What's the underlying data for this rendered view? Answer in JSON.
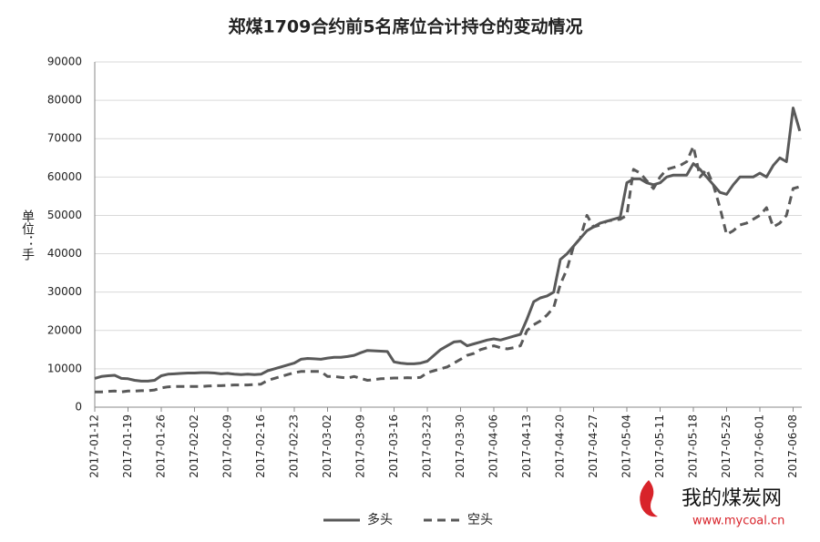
{
  "chart_data": {
    "type": "line",
    "title": "郑煤1709合约前5名席位合计持仓的变动情况",
    "y_label": "单位：手",
    "watermark": {
      "name": "我的煤炭网",
      "url": "www.mycoal.cn"
    },
    "categories": [
      "2017-01-12",
      null,
      null,
      null,
      null,
      "2017-01-19",
      null,
      null,
      null,
      null,
      "2017-01-26",
      null,
      null,
      null,
      null,
      "2017-02-02",
      null,
      null,
      null,
      null,
      "2017-02-09",
      null,
      null,
      null,
      null,
      "2017-02-16",
      null,
      null,
      null,
      null,
      "2017-02-23",
      null,
      null,
      null,
      null,
      "2017-03-02",
      null,
      null,
      null,
      null,
      "2017-03-09",
      null,
      null,
      null,
      null,
      "2017-03-16",
      null,
      null,
      null,
      null,
      "2017-03-23",
      null,
      null,
      null,
      null,
      "2017-03-30",
      null,
      null,
      null,
      null,
      "2017-04-06",
      null,
      null,
      null,
      null,
      "2017-04-13",
      null,
      null,
      null,
      null,
      "2017-04-20",
      null,
      null,
      null,
      null,
      "2017-04-27",
      null,
      null,
      null,
      null,
      "2017-05-04",
      null,
      null,
      null,
      null,
      "2017-05-11",
      null,
      null,
      null,
      null,
      "2017-05-18",
      null,
      null,
      null,
      null,
      "2017-05-25",
      null,
      null,
      null,
      null,
      "2017-06-01",
      null,
      null,
      null,
      null,
      "2017-06-08",
      null
    ],
    "series": [
      {
        "name": "多头",
        "color": "#595959",
        "dash": false,
        "values": [
          7500,
          8000,
          8200,
          8300,
          7500,
          7400,
          7000,
          6800,
          6800,
          7000,
          8200,
          8600,
          8700,
          8800,
          8900,
          8900,
          9000,
          9000,
          8900,
          8700,
          8800,
          8600,
          8500,
          8600,
          8500,
          8600,
          9500,
          10000,
          10500,
          11000,
          11500,
          12500,
          12700,
          12600,
          12500,
          12800,
          13000,
          13000,
          13200,
          13500,
          14200,
          14800,
          14700,
          14600,
          14500,
          11800,
          11500,
          11300,
          11300,
          11500,
          12000,
          13500,
          15000,
          16000,
          17000,
          17200,
          16000,
          16500,
          17000,
          17500,
          17800,
          17500,
          18000,
          18500,
          19000,
          23000,
          27500,
          28500,
          29000,
          30000,
          38500,
          40000,
          42000,
          44000,
          46000,
          47000,
          48000,
          48500,
          49000,
          49500,
          58500,
          59500,
          59500,
          58500,
          58000,
          58500,
          60000,
          60500,
          60500,
          60500,
          63500,
          62000,
          60000,
          58000,
          56000,
          55500,
          58000,
          60000,
          60000,
          60000,
          61000,
          60000,
          63000,
          65000,
          64000,
          78000,
          72000
        ]
      },
      {
        "name": "空头",
        "color": "#595959",
        "dash": true,
        "values": [
          4000,
          4000,
          4100,
          4200,
          4000,
          4200,
          4200,
          4300,
          4300,
          4500,
          5000,
          5300,
          5400,
          5400,
          5400,
          5400,
          5400,
          5500,
          5600,
          5600,
          5700,
          5800,
          5800,
          5800,
          5900,
          6000,
          7000,
          7500,
          8000,
          8500,
          9000,
          9300,
          9300,
          9300,
          9300,
          8000,
          8000,
          7800,
          7600,
          8000,
          7500,
          7000,
          7200,
          7400,
          7500,
          7600,
          7600,
          7700,
          7600,
          7800,
          9000,
          9500,
          10000,
          10500,
          11500,
          12500,
          13500,
          14000,
          15000,
          15500,
          16000,
          15500,
          15200,
          15500,
          16000,
          20000,
          21500,
          22500,
          24000,
          26000,
          32000,
          36000,
          42000,
          44000,
          50000,
          47000,
          47500,
          48500,
          48800,
          49000,
          50000,
          62000,
          61000,
          59000,
          57000,
          60000,
          62000,
          62500,
          63000,
          64000,
          68000,
          60000,
          62000,
          58000,
          52000,
          45000,
          46000,
          47500,
          48000,
          49000,
          50000,
          52000,
          47000,
          48000,
          50000,
          57000,
          57500
        ]
      }
    ],
    "ylim": [
      0,
      90000
    ],
    "yticks": [
      0,
      10000,
      20000,
      30000,
      40000,
      50000,
      60000,
      70000,
      80000,
      90000
    ],
    "grid": true,
    "legend": "bottom"
  }
}
